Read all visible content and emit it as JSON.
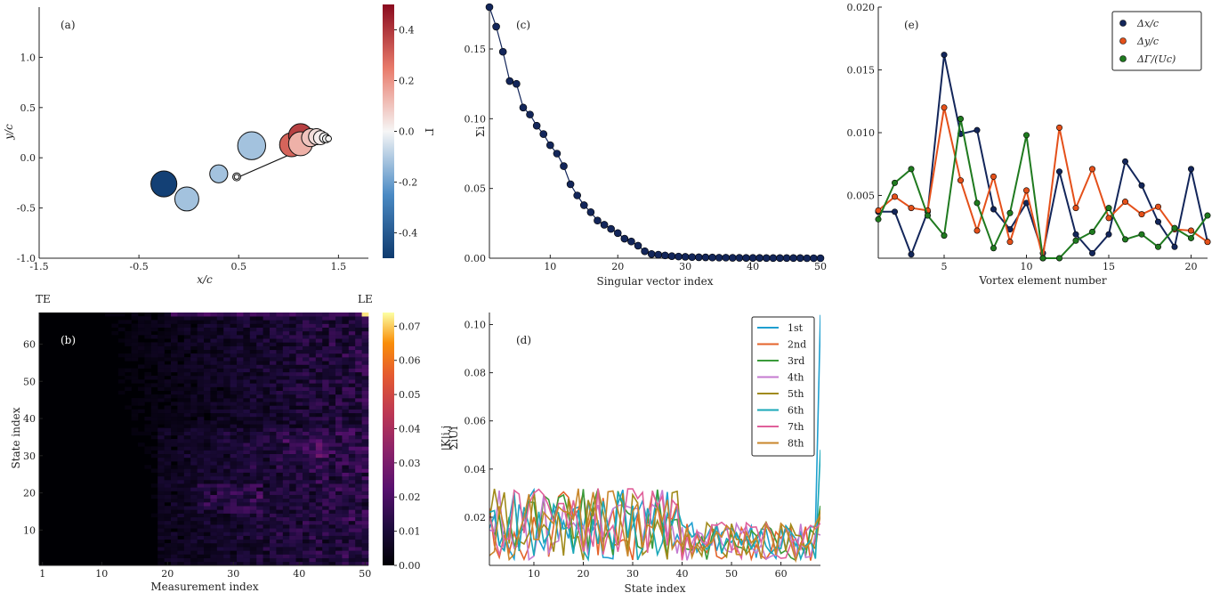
{
  "chart_data": [
    {
      "panel": "(a)",
      "type": "scatter",
      "xlabel": "x/c",
      "ylabel": "y/c",
      "xlim": [
        -1.5,
        1.8
      ],
      "ylim": [
        -1.0,
        1.5
      ],
      "xticks": [
        "-1.5",
        "-0.5",
        "0.5",
        "1.5"
      ],
      "xtick_values": [
        -1.5,
        -0.5,
        0.5,
        1.5
      ],
      "yticks": [
        "-1.0",
        "-0.5",
        "0.0",
        "0.5",
        "1.0"
      ],
      "ytick_values": [
        -1.0,
        -0.5,
        0.0,
        0.5,
        1.0
      ],
      "colorbar_label": "Γ",
      "colorbar_range": [
        -0.5,
        0.5
      ],
      "colorbar_ticks": [
        "0.4",
        "0.2",
        "0.0",
        "-0.2",
        "-0.4"
      ],
      "colorbar_tick_values": [
        0.4,
        0.2,
        0.0,
        -0.2,
        -0.4
      ],
      "plate": [
        [
          0.48,
          -0.2
        ],
        [
          1.4,
          0.2
        ]
      ],
      "vortices": [
        {
          "x": -0.25,
          "y": -0.26,
          "r": 0.13,
          "gamma": -0.48
        },
        {
          "x": -0.02,
          "y": -0.41,
          "r": 0.12,
          "gamma": -0.12
        },
        {
          "x": 0.3,
          "y": -0.16,
          "r": 0.09,
          "gamma": -0.12
        },
        {
          "x": 0.48,
          "y": -0.19,
          "r": 0.04,
          "gamma": 0.0
        },
        {
          "x": 0.48,
          "y": -0.19,
          "r": 0.025,
          "gamma": 0.0
        },
        {
          "x": 0.63,
          "y": 0.12,
          "r": 0.14,
          "gamma": -0.12
        },
        {
          "x": 1.03,
          "y": 0.13,
          "r": 0.12,
          "gamma": 0.3
        },
        {
          "x": 1.12,
          "y": 0.22,
          "r": 0.12,
          "gamma": 0.38
        },
        {
          "x": 1.12,
          "y": 0.14,
          "r": 0.12,
          "gamma": 0.14
        },
        {
          "x": 1.22,
          "y": 0.2,
          "r": 0.09,
          "gamma": 0.1
        },
        {
          "x": 1.28,
          "y": 0.21,
          "r": 0.08,
          "gamma": 0.05
        },
        {
          "x": 1.32,
          "y": 0.2,
          "r": 0.07,
          "gamma": 0.02
        },
        {
          "x": 1.36,
          "y": 0.2,
          "r": 0.05,
          "gamma": 0.0
        },
        {
          "x": 1.38,
          "y": 0.19,
          "r": 0.04,
          "gamma": 0.0
        },
        {
          "x": 1.4,
          "y": 0.19,
          "r": 0.03,
          "gamma": 0.0
        }
      ]
    },
    {
      "panel": "(b)",
      "type": "heatmap",
      "xlabel": "Measurement index",
      "ylabel": "State index",
      "top_left_label": "TE",
      "top_right_label": "LE",
      "xlim": [
        1,
        50
      ],
      "ylim": [
        1,
        68
      ],
      "xticks": [
        "1",
        "10",
        "20",
        "30",
        "40",
        "50"
      ],
      "xtick_values": [
        1,
        10,
        20,
        30,
        40,
        50
      ],
      "yticks": [
        "10",
        "20",
        "30",
        "40",
        "50",
        "60"
      ],
      "ytick_values": [
        10,
        20,
        30,
        40,
        50,
        60
      ],
      "colorbar_label": "|K|i,j",
      "colorbar_range": [
        0,
        0.074
      ],
      "colorbar_ticks": [
        "0.07",
        "0.06",
        "0.05",
        "0.04",
        "0.03",
        "0.02",
        "0.01",
        "0.00"
      ],
      "colorbar_tick_values": [
        0.07,
        0.06,
        0.05,
        0.04,
        0.03,
        0.02,
        0.01,
        0.0
      ]
    },
    {
      "panel": "(c)",
      "type": "line",
      "xlabel": "Singular vector index",
      "ylabel": "Σi",
      "xlim": [
        1,
        50
      ],
      "ylim": [
        0,
        0.18
      ],
      "xticks": [
        "10",
        "20",
        "30",
        "40",
        "50"
      ],
      "xtick_values": [
        10,
        20,
        30,
        40,
        50
      ],
      "yticks": [
        "0.00",
        "0.05",
        "0.10",
        "0.15"
      ],
      "ytick_values": [
        0.0,
        0.05,
        0.1,
        0.15
      ],
      "x": [
        1,
        2,
        3,
        4,
        5,
        6,
        7,
        8,
        9,
        10,
        11,
        12,
        13,
        14,
        15,
        16,
        17,
        18,
        19,
        20,
        21,
        22,
        23,
        24,
        25,
        26,
        27,
        28,
        29,
        30,
        31,
        32,
        33,
        34,
        35,
        36,
        37,
        38,
        39,
        40,
        41,
        42,
        43,
        44,
        45,
        46,
        47,
        48,
        49,
        50
      ],
      "values": [
        0.18,
        0.166,
        0.148,
        0.127,
        0.125,
        0.108,
        0.103,
        0.095,
        0.089,
        0.081,
        0.075,
        0.066,
        0.053,
        0.045,
        0.038,
        0.033,
        0.027,
        0.024,
        0.021,
        0.018,
        0.014,
        0.012,
        0.009,
        0.005,
        0.003,
        0.0025,
        0.002,
        0.0015,
        0.0012,
        0.001,
        0.0008,
        0.0007,
        0.0006,
        0.0005,
        0.0004,
        0.0004,
        0.0003,
        0.0003,
        0.0002,
        0.0002,
        0.0002,
        0.0001,
        0.0001,
        0.0001,
        0.0001,
        0.0001,
        0.0001,
        0.0,
        0.0,
        0.0
      ]
    },
    {
      "panel": "(d)",
      "type": "line",
      "xlabel": "State index",
      "ylabel": "ΣiUi",
      "xlim": [
        1,
        68
      ],
      "ylim": [
        0,
        0.105
      ],
      "xticks": [
        "10",
        "20",
        "30",
        "40",
        "50",
        "60"
      ],
      "xtick_values": [
        10,
        20,
        30,
        40,
        50,
        60
      ],
      "yticks": [
        "0.02",
        "0.04",
        "0.06",
        "0.08",
        "0.10"
      ],
      "ytick_values": [
        0.02,
        0.04,
        0.06,
        0.08,
        0.1
      ],
      "legend_placement": "top-right",
      "series": [
        {
          "name": "1st",
          "color": "#1f9fd0"
        },
        {
          "name": "2nd",
          "color": "#e4632a"
        },
        {
          "name": "3rd",
          "color": "#3a9a3a"
        },
        {
          "name": "4th",
          "color": "#c47ad0"
        },
        {
          "name": "5th",
          "color": "#a08a1a"
        },
        {
          "name": "6th",
          "color": "#1aa8b8"
        },
        {
          "name": "7th",
          "color": "#e0609a"
        },
        {
          "name": "8th",
          "color": "#c8862a"
        }
      ]
    },
    {
      "panel": "(e)",
      "type": "line",
      "xlabel": "Vortex element number",
      "xlim": [
        1,
        21
      ],
      "ylim": [
        0,
        0.02
      ],
      "xticks": [
        "5",
        "10",
        "15",
        "20"
      ],
      "xtick_values": [
        5,
        10,
        15,
        20
      ],
      "yticks": [
        "0.005",
        "0.010",
        "0.015",
        "0.020"
      ],
      "ytick_values": [
        0.005,
        0.01,
        0.015,
        0.02
      ],
      "legend_placement": "top-right",
      "x": [
        1,
        2,
        3,
        4,
        5,
        6,
        7,
        8,
        9,
        10,
        11,
        12,
        13,
        14,
        15,
        16,
        17,
        18,
        19,
        20,
        21
      ],
      "series": [
        {
          "name": "Δx/c",
          "color": "#13265a",
          "values": [
            0.0037,
            0.0037,
            0.0003,
            0.0037,
            0.0162,
            0.0099,
            0.0102,
            0.0039,
            0.0023,
            0.0044,
            0.0004,
            0.0069,
            0.0019,
            0.0004,
            0.0019,
            0.0077,
            0.0058,
            0.0029,
            0.0009,
            0.0071,
            0.0013
          ]
        },
        {
          "name": "Δy/c",
          "color": "#e4501a",
          "values": [
            0.0038,
            0.0049,
            0.004,
            0.0038,
            0.012,
            0.0062,
            0.0022,
            0.0065,
            0.0013,
            0.0054,
            0.0,
            0.0104,
            0.004,
            0.0071,
            0.0032,
            0.0045,
            0.0035,
            0.0041,
            0.0023,
            0.0022,
            0.0013
          ]
        },
        {
          "name": "ΔΓ/(Uc)",
          "color": "#1f7a1f",
          "values": [
            0.0031,
            0.006,
            0.0071,
            0.0034,
            0.0018,
            0.0111,
            0.0044,
            0.0008,
            0.0036,
            0.0098,
            0.0,
            0.0,
            0.0014,
            0.0021,
            0.004,
            0.0015,
            0.0019,
            0.0009,
            0.0024,
            0.0016,
            0.0034
          ]
        }
      ]
    }
  ]
}
